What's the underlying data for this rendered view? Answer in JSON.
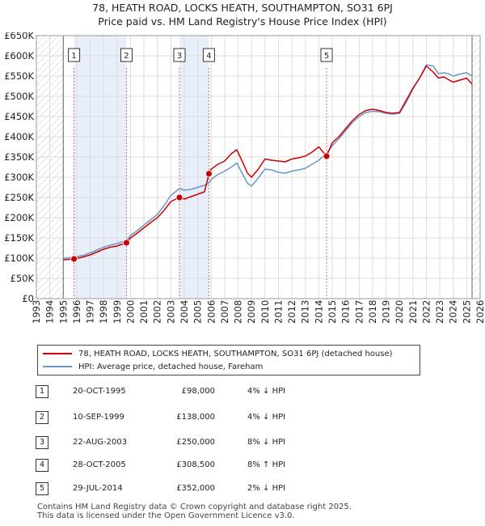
{
  "chart_data": {
    "type": "line",
    "title": "78, HEATH ROAD, LOCKS HEATH, SOUTHAMPTON, SO31 6PJ",
    "subtitle": "Price paid vs. HM Land Registry's House Price Index (HPI)",
    "xlim": [
      1993,
      2026
    ],
    "ylim": [
      0,
      650000
    ],
    "x_ticks": [
      "1993",
      "1994",
      "1995",
      "1996",
      "1997",
      "1998",
      "1999",
      "2000",
      "2001",
      "2002",
      "2003",
      "2004",
      "2005",
      "2006",
      "2007",
      "2008",
      "2009",
      "2010",
      "2011",
      "2012",
      "2013",
      "2014",
      "2015",
      "2016",
      "2017",
      "2018",
      "2019",
      "2020",
      "2021",
      "2022",
      "2023",
      "2024",
      "2025",
      "2026"
    ],
    "y_ticks": [
      {
        "value": 0,
        "label": "£0"
      },
      {
        "value": 50000,
        "label": "£50K"
      },
      {
        "value": 100000,
        "label": "£100K"
      },
      {
        "value": 150000,
        "label": "£150K"
      },
      {
        "value": 200000,
        "label": "£200K"
      },
      {
        "value": 250000,
        "label": "£250K"
      },
      {
        "value": 300000,
        "label": "£300K"
      },
      {
        "value": 350000,
        "label": "£350K"
      },
      {
        "value": 400000,
        "label": "£400K"
      },
      {
        "value": 450000,
        "label": "£450K"
      },
      {
        "value": 500000,
        "label": "£500K"
      },
      {
        "value": 550000,
        "label": "£550K"
      },
      {
        "value": 600000,
        "label": "£600K"
      },
      {
        "value": 650000,
        "label": "£650K"
      }
    ],
    "data_range": [
      1995.0,
      2025.4
    ],
    "sale_bands": [
      [
        1995.8,
        1999.7
      ],
      [
        2003.64,
        2005.83
      ]
    ],
    "series": [
      {
        "name": "78, HEATH ROAD, LOCKS HEATH, SOUTHAMPTON, SO31 6PJ (detached house)",
        "color": "#cc0000",
        "x": [
          1995.0,
          1995.8,
          1996.5,
          1997.0,
          1997.5,
          1998.0,
          1998.5,
          1999.0,
          1999.7,
          2000.0,
          2000.5,
          2001.0,
          2001.5,
          2002.0,
          2002.5,
          2003.0,
          2003.64,
          2004.0,
          2004.5,
          2005.0,
          2005.5,
          2005.83,
          2006.0,
          2006.5,
          2007.0,
          2007.5,
          2007.9,
          2008.3,
          2008.7,
          2009.0,
          2009.5,
          2010.0,
          2010.5,
          2011.0,
          2011.5,
          2012.0,
          2012.5,
          2013.0,
          2013.5,
          2014.0,
          2014.58,
          2015.0,
          2015.5,
          2016.0,
          2016.5,
          2017.0,
          2017.5,
          2018.0,
          2018.5,
          2019.0,
          2019.5,
          2020.0,
          2020.5,
          2021.0,
          2021.5,
          2022.0,
          2022.5,
          2022.9,
          2023.3,
          2023.7,
          2024.0,
          2024.5,
          2025.0,
          2025.4
        ],
        "y": [
          96000,
          98000,
          103000,
          108000,
          115000,
          122000,
          127000,
          130000,
          138000,
          150000,
          162000,
          175000,
          188000,
          200000,
          218000,
          240000,
          250000,
          246000,
          252000,
          258000,
          264000,
          308500,
          320000,
          332000,
          340000,
          358000,
          368000,
          340000,
          310000,
          300000,
          320000,
          345000,
          342000,
          340000,
          338000,
          345000,
          348000,
          352000,
          362000,
          375000,
          352000,
          385000,
          400000,
          420000,
          440000,
          455000,
          465000,
          468000,
          465000,
          460000,
          458000,
          460000,
          490000,
          520000,
          545000,
          575000,
          560000,
          545000,
          548000,
          540000,
          535000,
          540000,
          545000,
          530000
        ]
      },
      {
        "name": "HPI: Average price, detached house, Fareham",
        "color": "#6a96c8",
        "x": [
          1995.0,
          1995.8,
          1996.5,
          1997.0,
          1997.5,
          1998.0,
          1998.5,
          1999.0,
          1999.7,
          2000.0,
          2000.5,
          2001.0,
          2001.5,
          2002.0,
          2002.5,
          2003.0,
          2003.64,
          2004.0,
          2004.5,
          2005.0,
          2005.5,
          2005.83,
          2006.0,
          2006.5,
          2007.0,
          2007.5,
          2007.9,
          2008.3,
          2008.7,
          2009.0,
          2009.5,
          2010.0,
          2010.5,
          2011.0,
          2011.5,
          2012.0,
          2012.5,
          2013.0,
          2013.5,
          2014.0,
          2014.58,
          2015.0,
          2015.5,
          2016.0,
          2016.5,
          2017.0,
          2017.5,
          2018.0,
          2018.5,
          2019.0,
          2019.5,
          2020.0,
          2020.5,
          2021.0,
          2021.5,
          2022.0,
          2022.5,
          2022.9,
          2023.3,
          2023.7,
          2024.0,
          2024.5,
          2025.0,
          2025.4
        ],
        "y": [
          100000,
          102000,
          107000,
          113000,
          120000,
          127000,
          132000,
          136000,
          144000,
          156000,
          168000,
          182000,
          195000,
          208000,
          230000,
          255000,
          272000,
          268000,
          270000,
          275000,
          280000,
          285000,
          295000,
          307000,
          315000,
          325000,
          335000,
          310000,
          285000,
          278000,
          298000,
          320000,
          318000,
          312000,
          310000,
          315000,
          318000,
          322000,
          332000,
          342000,
          359000,
          378000,
          395000,
          415000,
          435000,
          450000,
          460000,
          463000,
          462000,
          458000,
          456000,
          458000,
          485000,
          518000,
          545000,
          578000,
          575000,
          556000,
          558000,
          555000,
          550000,
          555000,
          558000,
          550000
        ]
      }
    ],
    "sales": [
      {
        "label": "1",
        "date": "20-OCT-1995",
        "x": 1995.8,
        "price": 98000,
        "price_label": "£98,000",
        "hpi": "4% ↓ HPI"
      },
      {
        "label": "2",
        "date": "10-SEP-1999",
        "x": 1999.7,
        "price": 138000,
        "price_label": "£138,000",
        "hpi": "4% ↓ HPI"
      },
      {
        "label": "3",
        "date": "22-AUG-2003",
        "x": 2003.64,
        "price": 250000,
        "price_label": "£250,000",
        "hpi": "8% ↓ HPI"
      },
      {
        "label": "4",
        "date": "28-OCT-2005",
        "x": 2005.83,
        "price": 308500,
        "price_label": "£308,500",
        "hpi": "8% ↑ HPI"
      },
      {
        "label": "5",
        "date": "29-JUL-2014",
        "x": 2014.58,
        "price": 352000,
        "price_label": "£352,000",
        "hpi": "2% ↓ HPI"
      }
    ]
  },
  "legend": {
    "property_label": "78, HEATH ROAD, LOCKS HEATH, SOUTHAMPTON, SO31 6PJ (detached house)",
    "hpi_label": "HPI: Average price, detached house, Fareham"
  },
  "footer": {
    "line1": "Contains HM Land Registry data © Crown copyright and database right 2025.",
    "line2": "This data is licensed under the Open Government Licence v3.0."
  },
  "colors": {
    "property": "#cc0000",
    "hpi": "#6a96c8",
    "band": "#e8eefa",
    "grid": "#dddddd",
    "marker": "#cc0000",
    "vline": "#e06666"
  }
}
